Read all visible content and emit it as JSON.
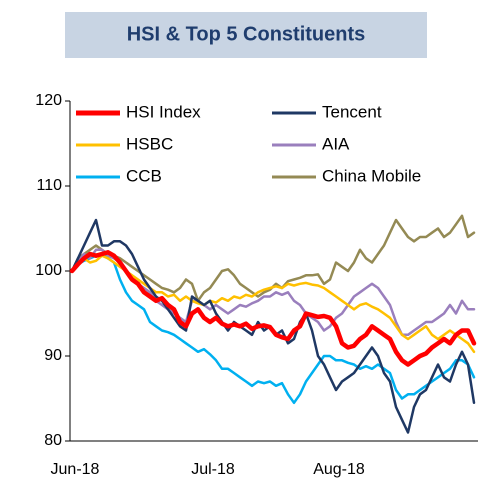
{
  "chart_data": {
    "type": "line",
    "title": "HSI & Top 5 Constituents",
    "categories": [
      "Jun-18",
      null,
      null,
      null,
      null,
      null,
      null,
      null,
      null,
      null,
      null,
      null,
      null,
      null,
      null,
      null,
      null,
      null,
      null,
      null,
      null,
      null,
      null,
      "Jul-18",
      null,
      null,
      null,
      null,
      null,
      null,
      null,
      null,
      null,
      null,
      null,
      null,
      null,
      null,
      null,
      null,
      null,
      null,
      null,
      null,
      "Aug-18",
      null,
      null,
      null,
      null,
      null,
      null,
      null,
      null,
      null,
      null,
      null,
      null,
      null,
      null,
      null,
      null,
      null,
      null,
      null,
      null,
      null,
      null,
      null
    ],
    "ylim": [
      80,
      120
    ],
    "yticks": [
      80,
      90,
      100,
      110,
      120
    ],
    "legend": "top",
    "series": [
      {
        "name": "HSI Index",
        "color": "#ff0000",
        "values": [
          100,
          100.8,
          101.5,
          102,
          101.8,
          102,
          102.2,
          101.8,
          101,
          100,
          99,
          98.5,
          97.5,
          97,
          96.5,
          96.8,
          96,
          95.5,
          94,
          93.5,
          95,
          95.5,
          94.5,
          94,
          94.5,
          93.8,
          93.5,
          93.7,
          93.5,
          93.8,
          93.2,
          93.5,
          93.6,
          93.4,
          92.5,
          92.2,
          92,
          93,
          93.5,
          95,
          94.8,
          94.6,
          94.7,
          94.5,
          93.5,
          91.5,
          91,
          91.2,
          92,
          92.5,
          93.5,
          93,
          92.5,
          92,
          90.5,
          89.5,
          89,
          89.5,
          90,
          90.3,
          91,
          91.5,
          92,
          91.5,
          92.5,
          93,
          93,
          91.5
        ]
      },
      {
        "name": "Tencent",
        "color": "#1f3864",
        "values": [
          100,
          101.5,
          103,
          104.5,
          106,
          103,
          103,
          103.5,
          103.5,
          103,
          102,
          100.5,
          99,
          98,
          97,
          96.5,
          95.5,
          94.5,
          93.5,
          93,
          97,
          96.5,
          96,
          96.5,
          95,
          94,
          93,
          94,
          93.5,
          93,
          92.5,
          94,
          93,
          93.5,
          92.5,
          93,
          91.5,
          92,
          94,
          95,
          93,
          90,
          89,
          87.5,
          86,
          87,
          87.5,
          88,
          89,
          90,
          91,
          90,
          88,
          87,
          84,
          82.5,
          81,
          84,
          85.5,
          86,
          87.5,
          89,
          87.5,
          87,
          89,
          90.5,
          89,
          84.5
        ]
      },
      {
        "name": "HSBC",
        "color": "#ffc000",
        "values": [
          100,
          101,
          101.5,
          101,
          101.2,
          101.8,
          101.5,
          101,
          100.5,
          100,
          99.5,
          99,
          98.5,
          98,
          97.5,
          97.5,
          97,
          97.2,
          96.5,
          97,
          96.5,
          96.2,
          96,
          96.5,
          96.3,
          96.8,
          96.5,
          97,
          96.8,
          97.2,
          97,
          97.5,
          97.8,
          98,
          98.2,
          98,
          98.5,
          98.3,
          98.5,
          98.6,
          98.4,
          98.3,
          98,
          97.5,
          97,
          96.5,
          96,
          95.5,
          96,
          96.2,
          95.8,
          95.5,
          95,
          94.5,
          93.5,
          92.5,
          92,
          92.5,
          93,
          93.5,
          92.5,
          92,
          92.5,
          93,
          92.5,
          92,
          91.5,
          90.5
        ]
      },
      {
        "name": "AIA",
        "color": "#9a7fbd",
        "values": [
          100,
          101,
          102,
          101.5,
          102.5,
          102.5,
          101.8,
          101.5,
          101,
          100,
          99,
          98.5,
          98,
          97.5,
          96.5,
          96,
          95.5,
          95,
          94.5,
          94,
          96.5,
          96.5,
          96,
          95.5,
          96,
          95.5,
          95,
          95.5,
          96,
          95.8,
          96.2,
          96.5,
          97,
          97,
          97.5,
          97.2,
          97.5,
          96.5,
          96,
          95,
          94.5,
          94,
          93,
          93.5,
          94.5,
          95,
          96,
          97,
          97.5,
          98,
          98.5,
          98,
          97,
          96,
          94,
          92.5,
          92.5,
          93,
          93.5,
          94,
          94,
          94.5,
          95,
          96,
          95,
          96.5,
          95.5,
          95.5
        ]
      },
      {
        "name": "CCB",
        "color": "#00b0f0",
        "values": [
          100,
          100.8,
          101.2,
          101.5,
          101.8,
          102,
          101.5,
          101,
          99,
          97.5,
          96.5,
          96,
          95.5,
          94,
          93.5,
          93,
          92.8,
          92.5,
          92,
          91.5,
          91,
          90.5,
          90.8,
          90.2,
          89.5,
          88.5,
          88.5,
          88,
          87.5,
          87,
          86.5,
          87,
          86.8,
          87,
          86.5,
          86.8,
          85.5,
          84.5,
          85.5,
          87,
          88,
          89,
          90,
          90,
          89.5,
          89.5,
          89.2,
          89,
          88.5,
          88.8,
          88.5,
          89,
          88.5,
          88,
          86,
          85,
          85.5,
          85.5,
          86,
          86.5,
          87,
          87.5,
          88,
          88.5,
          89.5,
          89.5,
          89,
          87.5
        ]
      },
      {
        "name": "China Mobile",
        "color": "#948a54",
        "values": [
          100,
          101.5,
          102,
          102.5,
          103,
          102.5,
          102,
          101.8,
          101.5,
          101,
          100.5,
          100,
          99.5,
          99,
          98.5,
          98,
          97.8,
          97.5,
          98,
          99,
          98.5,
          96.5,
          97.5,
          98,
          99,
          100,
          100.2,
          99.5,
          98.5,
          98,
          97.5,
          97,
          97.5,
          97.8,
          98.5,
          98,
          98.8,
          99,
          99.2,
          99.5,
          99.5,
          99.6,
          98.5,
          99,
          101,
          100.5,
          100,
          101,
          102.5,
          101.5,
          101,
          102,
          103,
          104.5,
          106,
          105,
          104,
          103.5,
          104,
          104,
          104.5,
          105,
          104,
          104.5,
          105.5,
          106.5,
          104,
          104.5
        ]
      }
    ]
  }
}
